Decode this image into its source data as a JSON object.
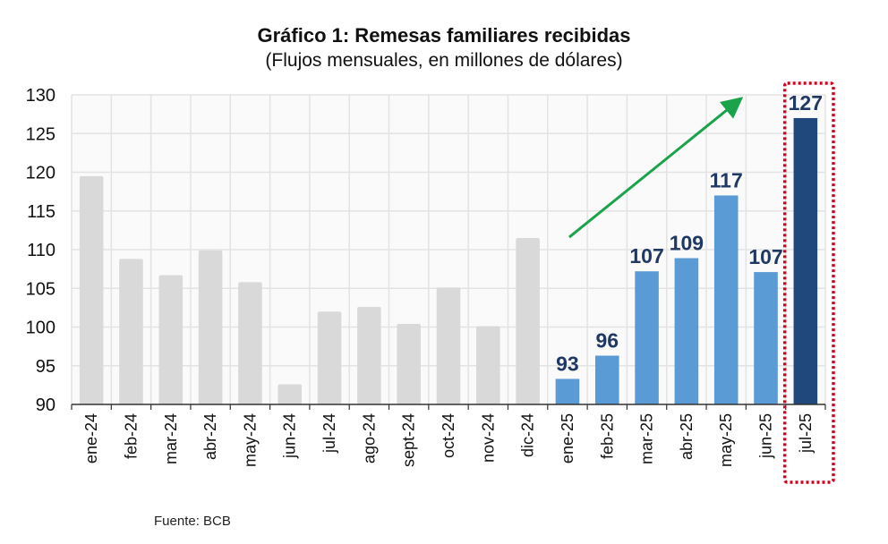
{
  "chart_data": {
    "type": "bar",
    "title": "Gráfico 1: Remesas familiares recibidas",
    "subtitle": "(Flujos mensuales, en millones de dólares)",
    "xlabel": "",
    "ylabel": "",
    "ylim": [
      90,
      130
    ],
    "yticks": [
      "90",
      "95",
      "100",
      "105",
      "110",
      "115",
      "120",
      "125",
      "130"
    ],
    "ytick_values": [
      90,
      95,
      100,
      105,
      110,
      115,
      120,
      125,
      130
    ],
    "grid": true,
    "categories": [
      "ene-24",
      "feb-24",
      "mar-24",
      "abr-24",
      "may-24",
      "jun-24",
      "jul-24",
      "ago-24",
      "sept-24",
      "oct-24",
      "nov-24",
      "dic-24",
      "ene-25",
      "feb-25",
      "mar-25",
      "abr-25",
      "may-25",
      "jun-25",
      "jul-25"
    ],
    "values": [
      119.5,
      108.8,
      106.7,
      109.9,
      105.8,
      92.6,
      102.0,
      102.6,
      100.4,
      105.1,
      100.1,
      111.5,
      93.3,
      96.3,
      107.2,
      108.9,
      117.0,
      107.1,
      127.0
    ],
    "data_labels": [
      null,
      null,
      null,
      null,
      null,
      null,
      null,
      null,
      null,
      null,
      null,
      null,
      "93",
      "96",
      "107",
      "109",
      "117",
      "107",
      "127"
    ],
    "bar_groups": [
      "2024",
      "2024",
      "2024",
      "2024",
      "2024",
      "2024",
      "2024",
      "2024",
      "2024",
      "2024",
      "2024",
      "2024",
      "2025",
      "2025",
      "2025",
      "2025",
      "2025",
      "2025",
      "latest"
    ],
    "colors": {
      "2024": "#d9d9d9",
      "2025": "#5b9bd5",
      "latest": "#1f497d",
      "data_label": "#1f3864",
      "trend_arrow": "#1aa34a",
      "highlight_box": "#d0021b",
      "grid": "#e3e3e3",
      "plot_bg": "#fafafa"
    },
    "annotations": {
      "trend_arrow": {
        "from_category": "ene-25",
        "to_category": "jun-25",
        "from_value": 111.5,
        "to_value": 129.3
      },
      "highlight_category": "jul-25"
    }
  },
  "source": "Fuente: BCB"
}
